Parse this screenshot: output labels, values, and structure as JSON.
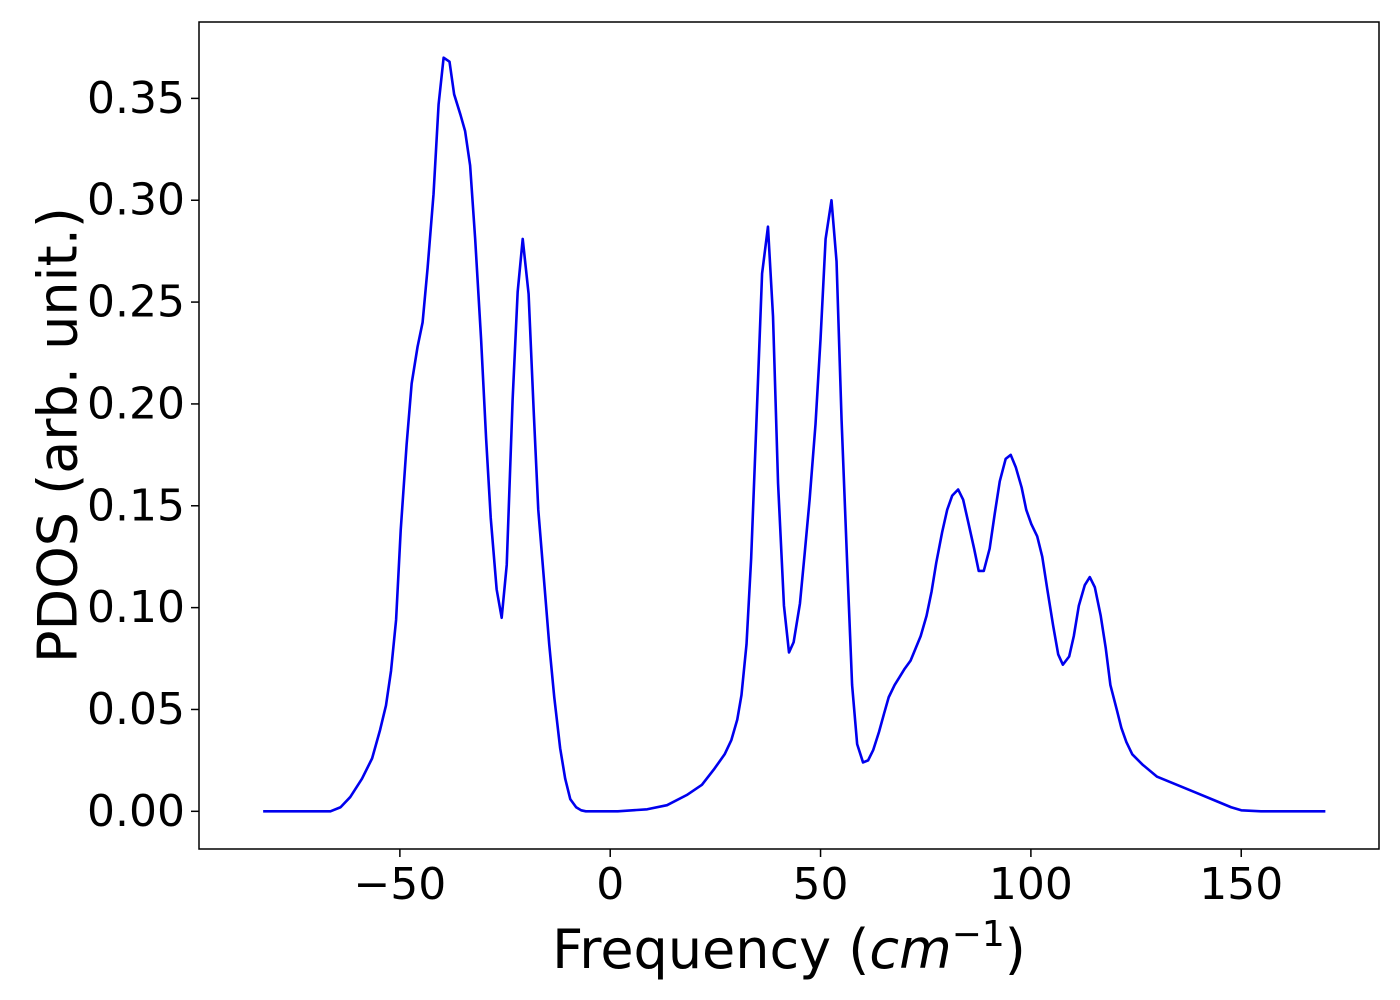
{
  "chart_data": {
    "type": "line",
    "xlabel": [
      "Frequency (",
      "cm",
      "−1",
      ")"
    ],
    "ylabel": "PDOS (arb. unit.)",
    "xlim": [
      -97.75,
      182.75
    ],
    "ylim": [
      -0.0185,
      0.3875
    ],
    "xticks": [
      {
        "value": -50,
        "label": "−50"
      },
      0,
      50,
      100,
      150
    ],
    "yticks": [
      {
        "value": 0,
        "label": "0.00"
      },
      {
        "value": 0.05,
        "label": "0.05"
      },
      {
        "value": 0.1,
        "label": "0.10"
      },
      {
        "value": 0.15,
        "label": "0.15"
      },
      {
        "value": 0.2,
        "label": "0.20"
      },
      {
        "value": 0.25,
        "label": "0.25"
      },
      {
        "value": 0.3,
        "label": "0.30"
      },
      {
        "value": 0.35,
        "label": "0.35"
      }
    ],
    "grid": false,
    "x": [
      -82.5,
      -66.5,
      -64.1,
      -61.8,
      -59.0,
      -56.6,
      -54.7,
      -53.3,
      -52.1,
      -50.9,
      -49.8,
      -48.4,
      -47.2,
      -45.8,
      -44.6,
      -43.4,
      -42.0,
      -40.8,
      -39.6,
      -38.2,
      -37.1,
      -35.6,
      -34.5,
      -33.3,
      -32.1,
      -30.7,
      -29.5,
      -28.4,
      -27.0,
      -25.8,
      -24.6,
      -23.2,
      -22.0,
      -20.8,
      -19.4,
      -18.2,
      -17.1,
      -15.6,
      -14.5,
      -13.3,
      -11.9,
      -10.7,
      -9.5,
      -8.1,
      -6.9,
      -5.8,
      1.8,
      8.8,
      13.5,
      18.2,
      21.8,
      24.8,
      27.2,
      28.8,
      30.2,
      31.2,
      32.4,
      33.5,
      34.7,
      36.1,
      37.5,
      38.7,
      39.9,
      41.3,
      42.5,
      43.6,
      45.1,
      46.2,
      47.4,
      48.8,
      50.0,
      51.2,
      52.6,
      53.8,
      55.0,
      56.4,
      57.5,
      58.7,
      60.1,
      61.3,
      62.5,
      63.9,
      65.1,
      66.2,
      67.6,
      68.8,
      70.0,
      71.4,
      72.6,
      73.8,
      75.2,
      76.4,
      77.5,
      78.9,
      80.1,
      81.3,
      82.7,
      83.9,
      85.1,
      86.5,
      87.6,
      88.8,
      90.2,
      91.4,
      92.6,
      94.0,
      95.2,
      96.4,
      97.8,
      98.9,
      100.1,
      101.5,
      102.7,
      103.9,
      105.3,
      106.5,
      107.6,
      109.1,
      110.2,
      111.4,
      112.8,
      114.0,
      115.2,
      116.6,
      117.8,
      118.9,
      120.4,
      121.5,
      122.7,
      124.1,
      126.5,
      130.0,
      134.7,
      139.4,
      144.1,
      147.6,
      150.0,
      154.7,
      170.0
    ],
    "series": [
      {
        "name": "PDOS",
        "color": "#0000ee",
        "values": [
          0,
          0,
          0.002,
          0.007,
          0.016,
          0.026,
          0.04,
          0.052,
          0.069,
          0.094,
          0.138,
          0.18,
          0.21,
          0.228,
          0.24,
          0.267,
          0.303,
          0.347,
          0.37,
          0.368,
          0.352,
          0.342,
          0.334,
          0.317,
          0.281,
          0.232,
          0.183,
          0.144,
          0.109,
          0.095,
          0.121,
          0.202,
          0.255,
          0.281,
          0.254,
          0.197,
          0.148,
          0.11,
          0.082,
          0.056,
          0.031,
          0.016,
          0.006,
          0.002,
          0.0005,
          0,
          0,
          0.001,
          0.003,
          0.008,
          0.013,
          0.021,
          0.028,
          0.035,
          0.045,
          0.057,
          0.082,
          0.124,
          0.188,
          0.264,
          0.287,
          0.243,
          0.161,
          0.101,
          0.078,
          0.083,
          0.102,
          0.126,
          0.153,
          0.19,
          0.232,
          0.281,
          0.3,
          0.27,
          0.192,
          0.118,
          0.062,
          0.033,
          0.024,
          0.025,
          0.03,
          0.039,
          0.048,
          0.056,
          0.062,
          0.066,
          0.07,
          0.074,
          0.08,
          0.086,
          0.096,
          0.108,
          0.122,
          0.137,
          0.148,
          0.155,
          0.158,
          0.153,
          0.142,
          0.129,
          0.118,
          0.118,
          0.129,
          0.146,
          0.162,
          0.173,
          0.175,
          0.169,
          0.159,
          0.148,
          0.141,
          0.135,
          0.125,
          0.109,
          0.091,
          0.077,
          0.072,
          0.076,
          0.086,
          0.101,
          0.111,
          0.115,
          0.11,
          0.096,
          0.08,
          0.062,
          0.05,
          0.041,
          0.034,
          0.028,
          0.023,
          0.017,
          0.013,
          0.009,
          0.005,
          0.002,
          0.0005,
          0,
          0
        ]
      }
    ]
  }
}
